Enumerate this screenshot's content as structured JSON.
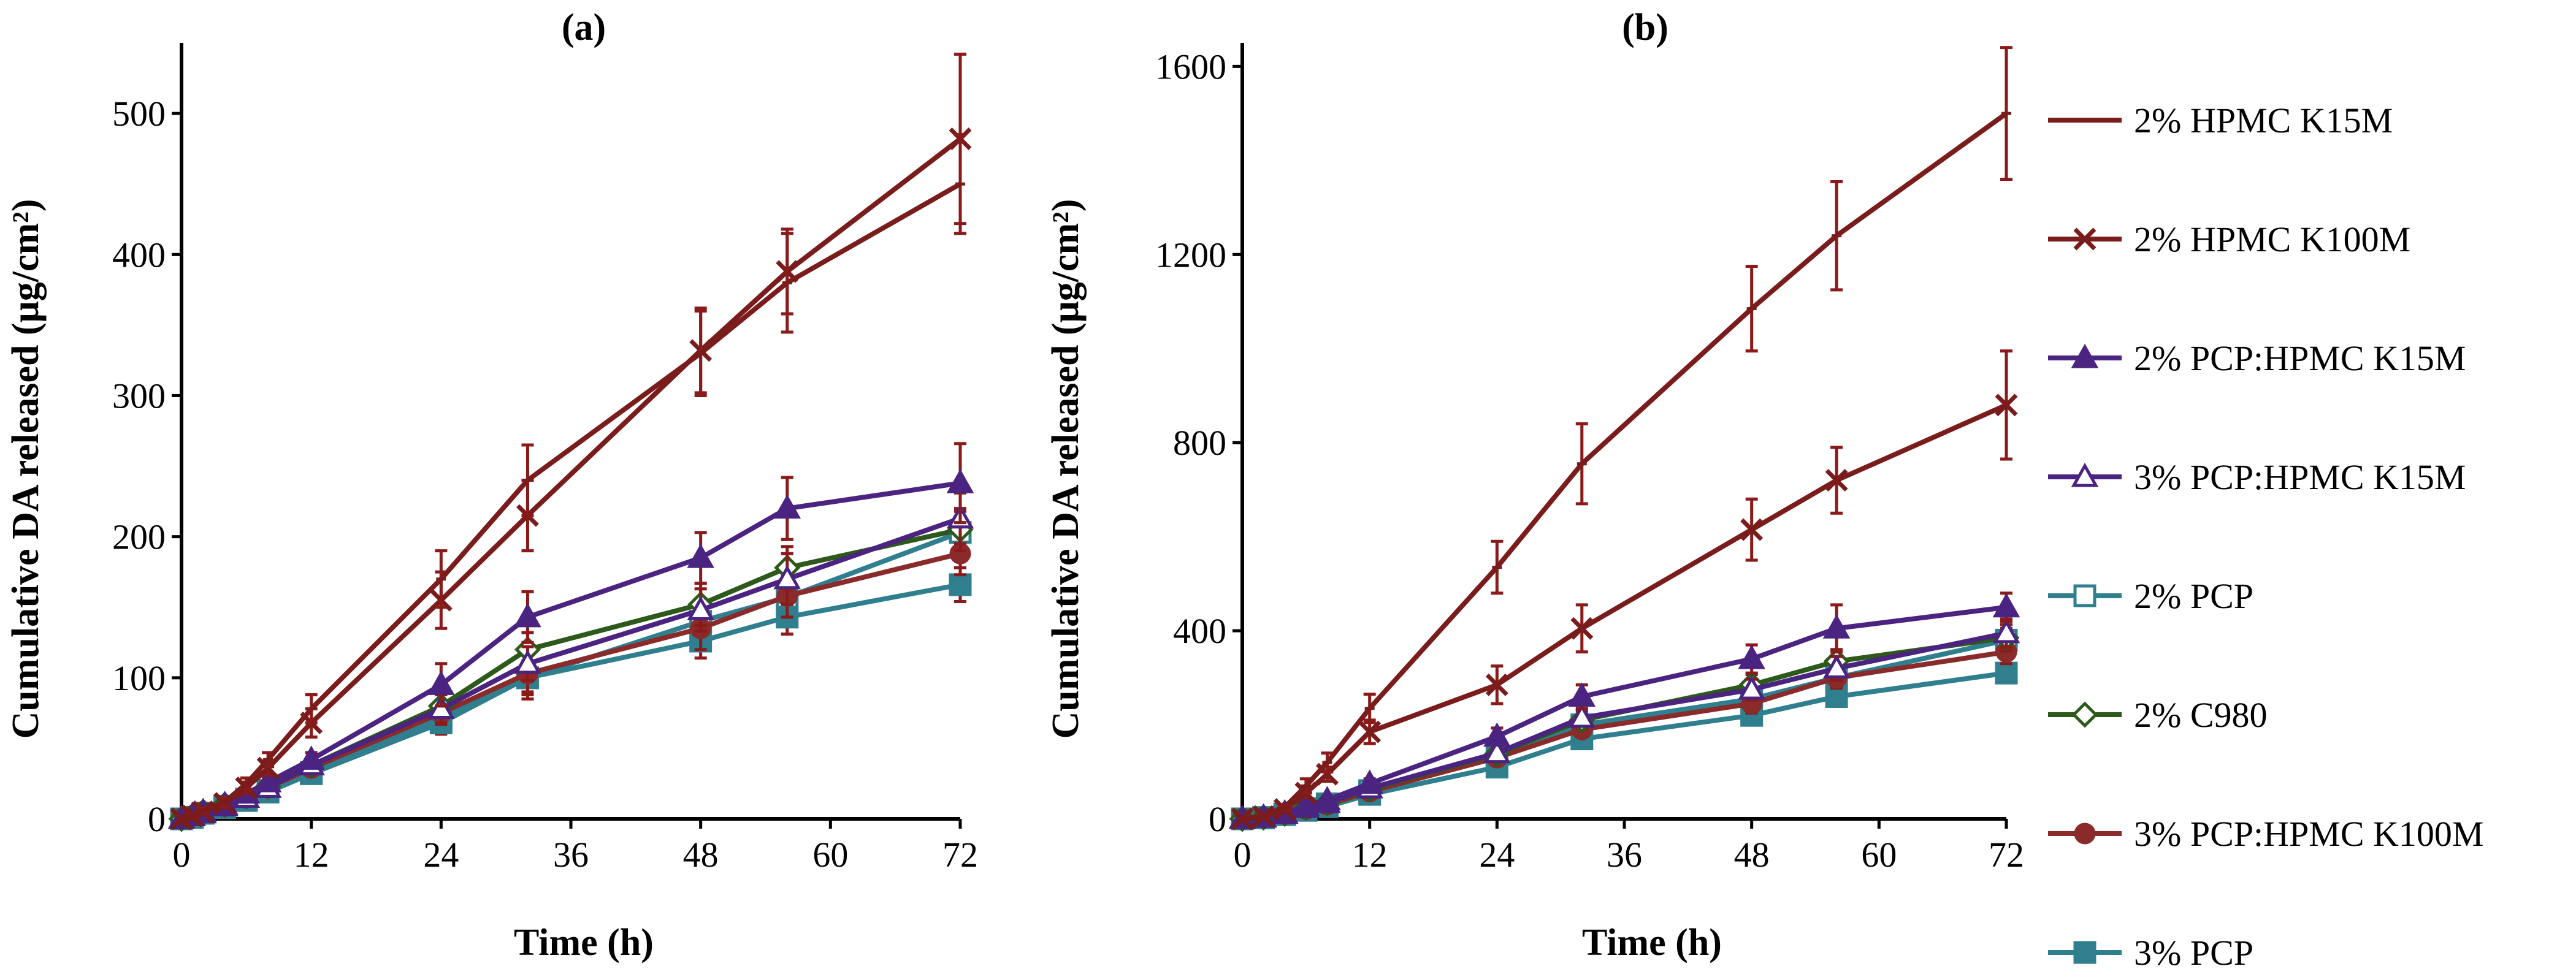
{
  "chart_data": [
    {
      "type": "line",
      "title": "(a)",
      "xlabel": "Time (h)",
      "ylabel": "Cumulative DA released (μg/cm²)",
      "xlim": [
        0,
        72
      ],
      "ylim": [
        0,
        550
      ],
      "xticks": [
        0,
        12,
        24,
        36,
        48,
        60,
        72
      ],
      "yticks": [
        0,
        100,
        200,
        300,
        400,
        500
      ],
      "x": [
        0,
        1,
        2,
        4,
        6,
        8,
        12,
        24,
        32,
        48,
        56,
        72
      ],
      "series": [
        {
          "name": "2% HPMC K15M",
          "values": [
            0,
            2,
            6,
            12,
            25,
            42,
            78,
            170,
            240,
            330,
            380,
            450
          ],
          "errors": [
            0,
            1,
            2,
            3,
            4,
            5,
            10,
            20,
            25,
            30,
            35,
            35
          ]
        },
        {
          "name": "2% HPMC K100M",
          "values": [
            0,
            2,
            5,
            11,
            22,
            36,
            68,
            155,
            215,
            332,
            388,
            482
          ],
          "errors": [
            0,
            1,
            2,
            3,
            4,
            5,
            10,
            20,
            25,
            30,
            30,
            60
          ]
        },
        {
          "name": "2% PCP:HPMC K15M",
          "values": [
            0,
            2,
            5,
            10,
            18,
            26,
            42,
            95,
            143,
            185,
            220,
            238
          ],
          "errors": [
            0,
            1,
            2,
            2,
            3,
            4,
            5,
            15,
            18,
            18,
            22,
            28
          ]
        },
        {
          "name": "3% PCP:HPMC K15M",
          "values": [
            0,
            2,
            4,
            9,
            15,
            22,
            38,
            78,
            110,
            148,
            170,
            213
          ],
          "errors": [
            0,
            1,
            1,
            2,
            3,
            3,
            5,
            10,
            12,
            15,
            18,
            18
          ]
        },
        {
          "name": "2% PCP",
          "values": [
            0,
            1,
            4,
            9,
            14,
            20,
            33,
            72,
            100,
            140,
            157,
            203
          ],
          "errors": [
            0,
            1,
            1,
            2,
            3,
            3,
            4,
            8,
            12,
            15,
            15,
            15
          ]
        },
        {
          "name": "2% C980",
          "values": [
            0,
            2,
            5,
            10,
            16,
            23,
            38,
            80,
            120,
            152,
            178,
            205
          ],
          "errors": [
            0,
            1,
            1,
            2,
            3,
            3,
            4,
            8,
            12,
            15,
            15,
            15
          ]
        },
        {
          "name": "3% PCP:HPMC K100M",
          "values": [
            0,
            2,
            5,
            9,
            15,
            22,
            36,
            75,
            103,
            135,
            158,
            188
          ],
          "errors": [
            0,
            1,
            1,
            2,
            3,
            3,
            4,
            8,
            18,
            15,
            15,
            15
          ]
        },
        {
          "name": "3% PCP",
          "values": [
            0,
            1,
            4,
            8,
            13,
            19,
            32,
            68,
            100,
            126,
            143,
            166
          ],
          "errors": [
            0,
            1,
            1,
            2,
            3,
            3,
            4,
            8,
            10,
            12,
            12,
            12
          ]
        }
      ]
    },
    {
      "type": "line",
      "title": "(b)",
      "xlabel": "Time (h)",
      "ylabel": "Cumulative DA released (μg/cm²)",
      "xlim": [
        0,
        72
      ],
      "ylim": [
        0,
        1650
      ],
      "xticks": [
        0,
        12,
        24,
        36,
        48,
        60,
        72
      ],
      "yticks": [
        0,
        400,
        800,
        1200,
        1600
      ],
      "x": [
        0,
        2,
        4,
        6,
        8,
        12,
        24,
        32,
        48,
        56,
        72
      ],
      "series": [
        {
          "name": "2% HPMC K15M",
          "values": [
            0,
            5,
            25,
            70,
            120,
            235,
            535,
            755,
            1085,
            1240,
            1500
          ],
          "errors": [
            0,
            2,
            5,
            15,
            20,
            30,
            55,
            85,
            90,
            115,
            140
          ]
        },
        {
          "name": "2% HPMC K100M",
          "values": [
            0,
            5,
            20,
            55,
            95,
            185,
            285,
            405,
            615,
            720,
            880
          ],
          "errors": [
            0,
            2,
            5,
            10,
            15,
            25,
            40,
            50,
            65,
            70,
            115
          ]
        },
        {
          "name": "2% PCP:HPMC K15M",
          "values": [
            0,
            3,
            12,
            28,
            40,
            75,
            175,
            260,
            340,
            405,
            450
          ],
          "errors": [
            0,
            1,
            3,
            5,
            6,
            10,
            18,
            25,
            30,
            50,
            30
          ]
        },
        {
          "name": "3% PCP:HPMC K15M",
          "values": [
            0,
            3,
            11,
            24,
            34,
            65,
            140,
            215,
            275,
            320,
            395
          ],
          "errors": [
            0,
            1,
            3,
            4,
            5,
            8,
            15,
            18,
            22,
            25,
            30
          ]
        },
        {
          "name": "2% PCP",
          "values": [
            0,
            3,
            10,
            22,
            32,
            60,
            130,
            200,
            255,
            300,
            380
          ],
          "errors": [
            0,
            1,
            3,
            4,
            5,
            8,
            12,
            15,
            20,
            22,
            25
          ]
        },
        {
          "name": "2% C980",
          "values": [
            0,
            3,
            11,
            24,
            34,
            63,
            138,
            210,
            285,
            335,
            385
          ],
          "errors": [
            0,
            1,
            3,
            4,
            5,
            8,
            15,
            18,
            22,
            25,
            28
          ]
        },
        {
          "name": "3% PCP:HPMC K100M",
          "values": [
            0,
            3,
            10,
            21,
            30,
            58,
            130,
            190,
            245,
            300,
            355
          ],
          "errors": [
            0,
            1,
            3,
            4,
            5,
            8,
            12,
            15,
            20,
            22,
            25
          ]
        },
        {
          "name": "3% PCP",
          "values": [
            0,
            2,
            9,
            18,
            26,
            52,
            110,
            170,
            220,
            260,
            310
          ],
          "errors": [
            0,
            1,
            2,
            3,
            4,
            7,
            10,
            12,
            15,
            18,
            20
          ]
        }
      ]
    }
  ],
  "legend": {
    "entries": [
      {
        "label": "2% HPMC K15M",
        "color": "#7b1c1c",
        "marker": "dash"
      },
      {
        "label": "2% HPMC K100M",
        "color": "#7b1c1c",
        "marker": "cross"
      },
      {
        "label": "2% PCP:HPMC K15M",
        "color": "#4b2380",
        "marker": "triangle-filled"
      },
      {
        "label": "3% PCP:HPMC K15M",
        "color": "#4b2380",
        "marker": "triangle-open"
      },
      {
        "label": "2% PCP",
        "color": "#2f7f8f",
        "marker": "square-open"
      },
      {
        "label": "2% C980",
        "color": "#2d5a1b",
        "marker": "diamond-open"
      },
      {
        "label": "3% PCP:HPMC K100M",
        "color": "#8b2a2a",
        "marker": "circle-filled"
      },
      {
        "label": "3% PCP",
        "color": "#2f7f8f",
        "marker": "square-filled"
      }
    ]
  },
  "error_bar_color": "#8b1a1a"
}
